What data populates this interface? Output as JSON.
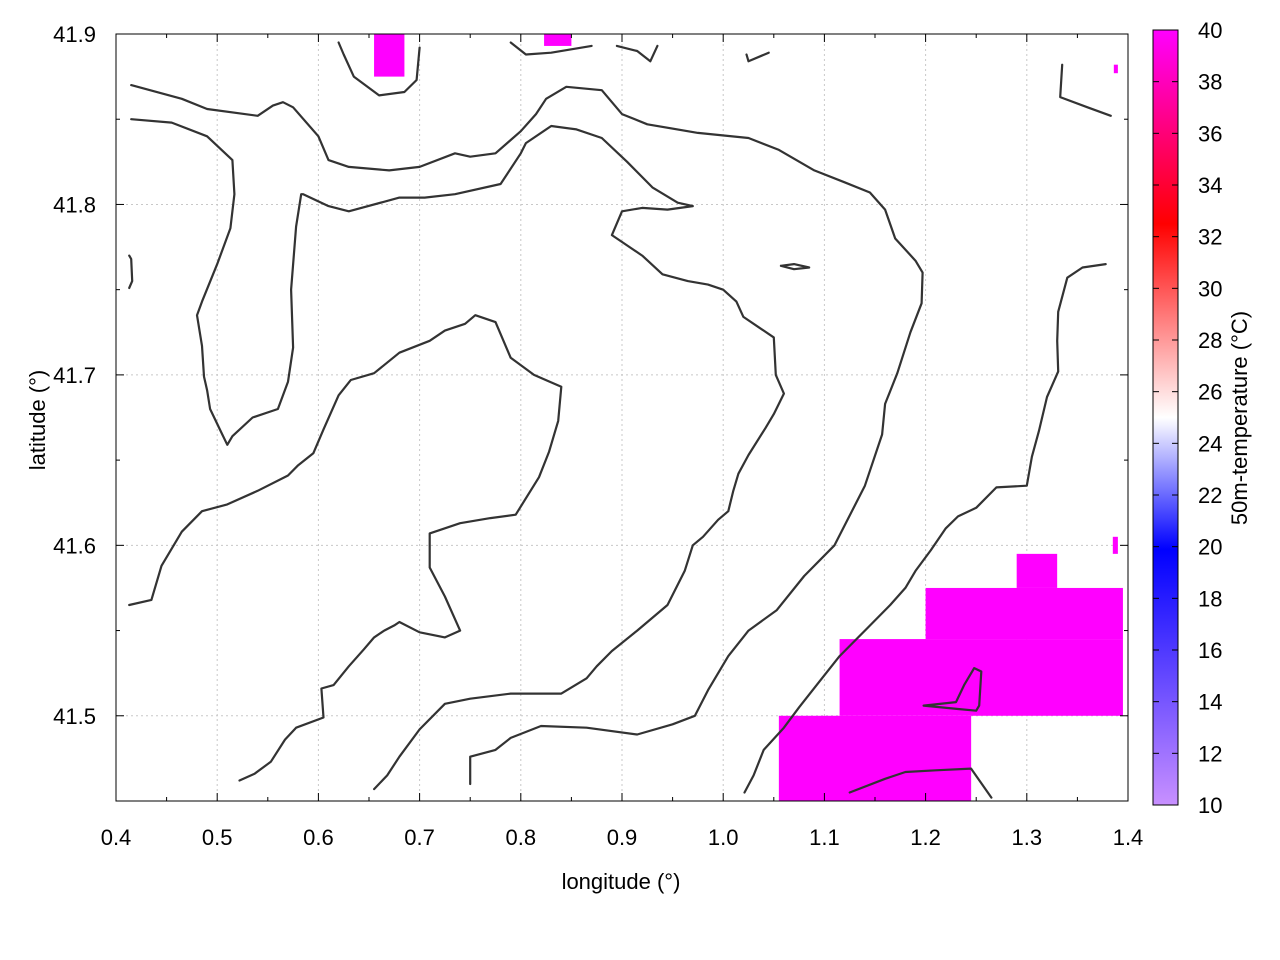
{
  "chart_data": {
    "type": "heatmap",
    "title": "",
    "xlabel": "longitude (°)",
    "ylabel": "latitude (°)",
    "xlim": [
      0.4,
      1.4
    ],
    "ylim": [
      41.45,
      41.9
    ],
    "xticks": [
      "0.4",
      "0.5",
      "0.6",
      "0.7",
      "0.8",
      "0.9",
      "1.0",
      "1.1",
      "1.2",
      "1.3",
      "1.4"
    ],
    "yticks": [
      "41.5",
      "41.6",
      "41.7",
      "41.8",
      "41.9"
    ],
    "grid": true,
    "colorbar": {
      "label": "50m-temperature (°C)",
      "min": 10,
      "max": 40,
      "ticks": [
        "10",
        "12",
        "14",
        "16",
        "18",
        "20",
        "22",
        "24",
        "26",
        "28",
        "30",
        "32",
        "34",
        "36",
        "38",
        "40"
      ],
      "colors": [
        "#c890ff",
        "#0000ff",
        "#ffffff",
        "#ff0000",
        "#ff00ff"
      ]
    },
    "hot_region_value": 40,
    "hot_regions": [
      {
        "lon": [
          0.655,
          0.685
        ],
        "lat": [
          41.875,
          41.9
        ]
      },
      {
        "lon": [
          0.823,
          0.85
        ],
        "lat": [
          41.893,
          41.9
        ]
      },
      {
        "lon": [
          1.386,
          1.39
        ],
        "lat": [
          41.877,
          41.882
        ]
      },
      {
        "lon": [
          1.055,
          1.245
        ],
        "lat": [
          41.45,
          41.5
        ]
      },
      {
        "lon": [
          1.115,
          1.395
        ],
        "lat": [
          41.5,
          41.545
        ]
      },
      {
        "lon": [
          1.2,
          1.395
        ],
        "lat": [
          41.545,
          41.575
        ]
      },
      {
        "lon": [
          1.29,
          1.33
        ],
        "lat": [
          41.575,
          41.595
        ]
      },
      {
        "lon": [
          1.385,
          1.39
        ],
        "lat": [
          41.595,
          41.605
        ]
      }
    ],
    "contours": [
      [
        [
          0.415,
          41.87
        ],
        [
          0.465,
          41.862
        ],
        [
          0.49,
          41.856
        ],
        [
          0.54,
          41.852
        ],
        [
          0.555,
          41.858
        ],
        [
          0.565,
          41.86
        ],
        [
          0.575,
          41.857
        ],
        [
          0.6,
          41.84
        ],
        [
          0.61,
          41.826
        ],
        [
          0.63,
          41.822
        ],
        [
          0.67,
          41.82
        ],
        [
          0.7,
          41.822
        ],
        [
          0.735,
          41.83
        ],
        [
          0.75,
          41.828
        ],
        [
          0.775,
          41.83
        ],
        [
          0.8,
          41.843
        ],
        [
          0.815,
          41.853
        ],
        [
          0.825,
          41.862
        ],
        [
          0.845,
          41.869
        ],
        [
          0.88,
          41.867
        ],
        [
          0.9,
          41.853
        ],
        [
          0.925,
          41.847
        ],
        [
          0.975,
          41.842
        ],
        [
          1.025,
          41.839
        ],
        [
          1.055,
          41.832
        ],
        [
          1.09,
          41.82
        ],
        [
          1.12,
          41.813
        ],
        [
          1.145,
          41.807
        ],
        [
          1.16,
          41.797
        ],
        [
          1.17,
          41.78
        ],
        [
          1.19,
          41.767
        ],
        [
          1.197,
          41.76
        ],
        [
          1.196,
          41.742
        ],
        [
          1.185,
          41.725
        ],
        [
          1.172,
          41.701
        ],
        [
          1.16,
          41.683
        ],
        [
          1.157,
          41.665
        ],
        [
          1.14,
          41.635
        ],
        [
          1.11,
          41.6
        ],
        [
          1.08,
          41.582
        ],
        [
          1.053,
          41.562
        ],
        [
          1.025,
          41.55
        ],
        [
          1.005,
          41.535
        ],
        [
          0.985,
          41.515
        ],
        [
          0.972,
          41.5
        ],
        [
          0.95,
          41.495
        ],
        [
          0.915,
          41.489
        ],
        [
          0.865,
          41.493
        ],
        [
          0.82,
          41.494
        ],
        [
          0.79,
          41.487
        ],
        [
          0.775,
          41.48
        ],
        [
          0.75,
          41.476
        ],
        [
          0.75,
          41.46
        ]
      ],
      [
        [
          0.415,
          41.85
        ],
        [
          0.455,
          41.848
        ],
        [
          0.49,
          41.84
        ],
        [
          0.515,
          41.826
        ],
        [
          0.517,
          41.806
        ],
        [
          0.513,
          41.786
        ],
        [
          0.5,
          41.765
        ],
        [
          0.485,
          41.743
        ],
        [
          0.48,
          41.735
        ],
        [
          0.485,
          41.717
        ],
        [
          0.487,
          41.699
        ],
        [
          0.49,
          41.691
        ],
        [
          0.493,
          41.68
        ],
        [
          0.505,
          41.665
        ],
        [
          0.51,
          41.659
        ],
        [
          0.515,
          41.664
        ],
        [
          0.535,
          41.675
        ],
        [
          0.56,
          41.68
        ],
        [
          0.57,
          41.696
        ],
        [
          0.575,
          41.716
        ],
        [
          0.573,
          41.75
        ],
        [
          0.578,
          41.787
        ],
        [
          0.583,
          41.806
        ],
        [
          0.585,
          41.806
        ],
        [
          0.61,
          41.799
        ],
        [
          0.63,
          41.796
        ],
        [
          0.68,
          41.804
        ],
        [
          0.705,
          41.804
        ],
        [
          0.735,
          41.806
        ],
        [
          0.78,
          41.812
        ],
        [
          0.8,
          41.83
        ],
        [
          0.805,
          41.836
        ],
        [
          0.83,
          41.846
        ],
        [
          0.855,
          41.844
        ],
        [
          0.88,
          41.839
        ],
        [
          0.905,
          41.825
        ],
        [
          0.93,
          41.81
        ],
        [
          0.955,
          41.801
        ],
        [
          0.97,
          41.799
        ],
        [
          0.945,
          41.797
        ],
        [
          0.92,
          41.798
        ],
        [
          0.9,
          41.796
        ],
        [
          0.89,
          41.782
        ],
        [
          0.92,
          41.77
        ],
        [
          0.94,
          41.759
        ],
        [
          0.965,
          41.755
        ],
        [
          0.985,
          41.753
        ],
        [
          1.0,
          41.75
        ],
        [
          1.013,
          41.743
        ],
        [
          1.02,
          41.734
        ],
        [
          1.035,
          41.728
        ],
        [
          1.05,
          41.722
        ],
        [
          1.052,
          41.7
        ],
        [
          1.06,
          41.689
        ],
        [
          1.05,
          41.677
        ],
        [
          1.042,
          41.669
        ],
        [
          1.025,
          41.653
        ],
        [
          1.015,
          41.642
        ],
        [
          1.01,
          41.632
        ],
        [
          1.005,
          41.62
        ],
        [
          0.995,
          41.615
        ],
        [
          0.98,
          41.605
        ],
        [
          0.97,
          41.6
        ],
        [
          0.962,
          41.585
        ],
        [
          0.945,
          41.565
        ],
        [
          0.915,
          41.55
        ],
        [
          0.89,
          41.538
        ],
        [
          0.875,
          41.529
        ],
        [
          0.865,
          41.522
        ],
        [
          0.84,
          41.513
        ],
        [
          0.79,
          41.513
        ],
        [
          0.75,
          41.51
        ],
        [
          0.725,
          41.507
        ],
        [
          0.7,
          41.492
        ],
        [
          0.68,
          41.476
        ],
        [
          0.668,
          41.465
        ],
        [
          0.655,
          41.457
        ]
      ],
      [
        [
          0.413,
          41.565
        ],
        [
          0.435,
          41.568
        ],
        [
          0.445,
          41.588
        ],
        [
          0.465,
          41.608
        ],
        [
          0.485,
          41.62
        ],
        [
          0.51,
          41.624
        ],
        [
          0.54,
          41.632
        ],
        [
          0.57,
          41.641
        ],
        [
          0.58,
          41.647
        ],
        [
          0.595,
          41.654
        ],
        [
          0.605,
          41.668
        ],
        [
          0.62,
          41.688
        ],
        [
          0.632,
          41.697
        ],
        [
          0.655,
          41.701
        ],
        [
          0.68,
          41.713
        ],
        [
          0.71,
          41.72
        ],
        [
          0.725,
          41.726
        ],
        [
          0.745,
          41.73
        ],
        [
          0.755,
          41.735
        ],
        [
          0.775,
          41.731
        ],
        [
          0.79,
          41.71
        ],
        [
          0.813,
          41.7
        ],
        [
          0.84,
          41.693
        ],
        [
          0.837,
          41.673
        ],
        [
          0.828,
          41.655
        ],
        [
          0.818,
          41.64
        ],
        [
          0.795,
          41.618
        ],
        [
          0.77,
          41.616
        ],
        [
          0.74,
          41.613
        ],
        [
          0.725,
          41.61
        ],
        [
          0.71,
          41.607
        ],
        [
          0.71,
          41.587
        ],
        [
          0.725,
          41.57
        ],
        [
          0.74,
          41.55
        ],
        [
          0.725,
          41.546
        ],
        [
          0.7,
          41.549
        ],
        [
          0.68,
          41.555
        ],
        [
          0.675,
          41.553
        ],
        [
          0.665,
          41.55
        ],
        [
          0.655,
          41.546
        ],
        [
          0.645,
          41.539
        ],
        [
          0.63,
          41.529
        ],
        [
          0.615,
          41.518
        ],
        [
          0.603,
          41.516
        ],
        [
          0.605,
          41.499
        ],
        [
          0.578,
          41.493
        ],
        [
          0.567,
          41.486
        ],
        [
          0.553,
          41.473
        ],
        [
          0.537,
          41.466
        ],
        [
          0.522,
          41.462
        ]
      ],
      [
        [
          1.021,
          41.455
        ],
        [
          1.03,
          41.465
        ],
        [
          1.04,
          41.48
        ],
        [
          1.06,
          41.493
        ],
        [
          1.075,
          41.505
        ],
        [
          1.095,
          41.52
        ],
        [
          1.115,
          41.535
        ],
        [
          1.14,
          41.55
        ],
        [
          1.165,
          41.565
        ],
        [
          1.18,
          41.575
        ],
        [
          1.19,
          41.585
        ],
        [
          1.205,
          41.597
        ],
        [
          1.22,
          41.61
        ],
        [
          1.232,
          41.617
        ],
        [
          1.25,
          41.622
        ],
        [
          1.27,
          41.634
        ],
        [
          1.3,
          41.635
        ],
        [
          1.305,
          41.652
        ],
        [
          1.312,
          41.667
        ],
        [
          1.32,
          41.687
        ],
        [
          1.331,
          41.702
        ],
        [
          1.33,
          41.72
        ],
        [
          1.331,
          41.737
        ],
        [
          1.34,
          41.757
        ],
        [
          1.355,
          41.763
        ],
        [
          1.378,
          41.765
        ]
      ],
      [
        [
          1.125,
          41.455
        ],
        [
          1.16,
          41.463
        ],
        [
          1.18,
          41.467
        ],
        [
          1.21,
          41.468
        ],
        [
          1.245,
          41.469
        ],
        [
          1.265,
          41.452
        ]
      ],
      [
        [
          1.198,
          41.506
        ],
        [
          1.232,
          41.504
        ],
        [
          1.25,
          41.503
        ],
        [
          1.253,
          41.506
        ],
        [
          1.255,
          41.526
        ],
        [
          1.248,
          41.528
        ],
        [
          1.238,
          41.518
        ],
        [
          1.23,
          41.508
        ],
        [
          1.198,
          41.506
        ]
      ],
      [
        [
          0.62,
          41.895
        ],
        [
          0.625,
          41.888
        ],
        [
          0.635,
          41.875
        ],
        [
          0.66,
          41.864
        ],
        [
          0.685,
          41.866
        ],
        [
          0.697,
          41.873
        ],
        [
          0.7,
          41.892
        ]
      ],
      [
        [
          0.79,
          41.895
        ],
        [
          0.805,
          41.888
        ],
        [
          0.83,
          41.889
        ],
        [
          0.87,
          41.893
        ]
      ],
      [
        [
          0.895,
          41.893
        ],
        [
          0.915,
          41.89
        ],
        [
          0.928,
          41.884
        ],
        [
          0.935,
          41.893
        ]
      ],
      [
        [
          1.023,
          41.888
        ],
        [
          1.025,
          41.884
        ],
        [
          1.045,
          41.889
        ]
      ],
      [
        [
          1.057,
          41.764
        ],
        [
          1.07,
          41.765
        ],
        [
          1.085,
          41.763
        ],
        [
          1.07,
          41.762
        ],
        [
          1.057,
          41.764
        ]
      ],
      [
        [
          0.413,
          41.77
        ],
        [
          0.415,
          41.768
        ],
        [
          0.416,
          41.755
        ],
        [
          0.413,
          41.751
        ]
      ],
      [
        [
          1.335,
          41.882
        ],
        [
          1.333,
          41.863
        ],
        [
          1.36,
          41.857
        ],
        [
          1.383,
          41.852
        ]
      ]
    ]
  }
}
